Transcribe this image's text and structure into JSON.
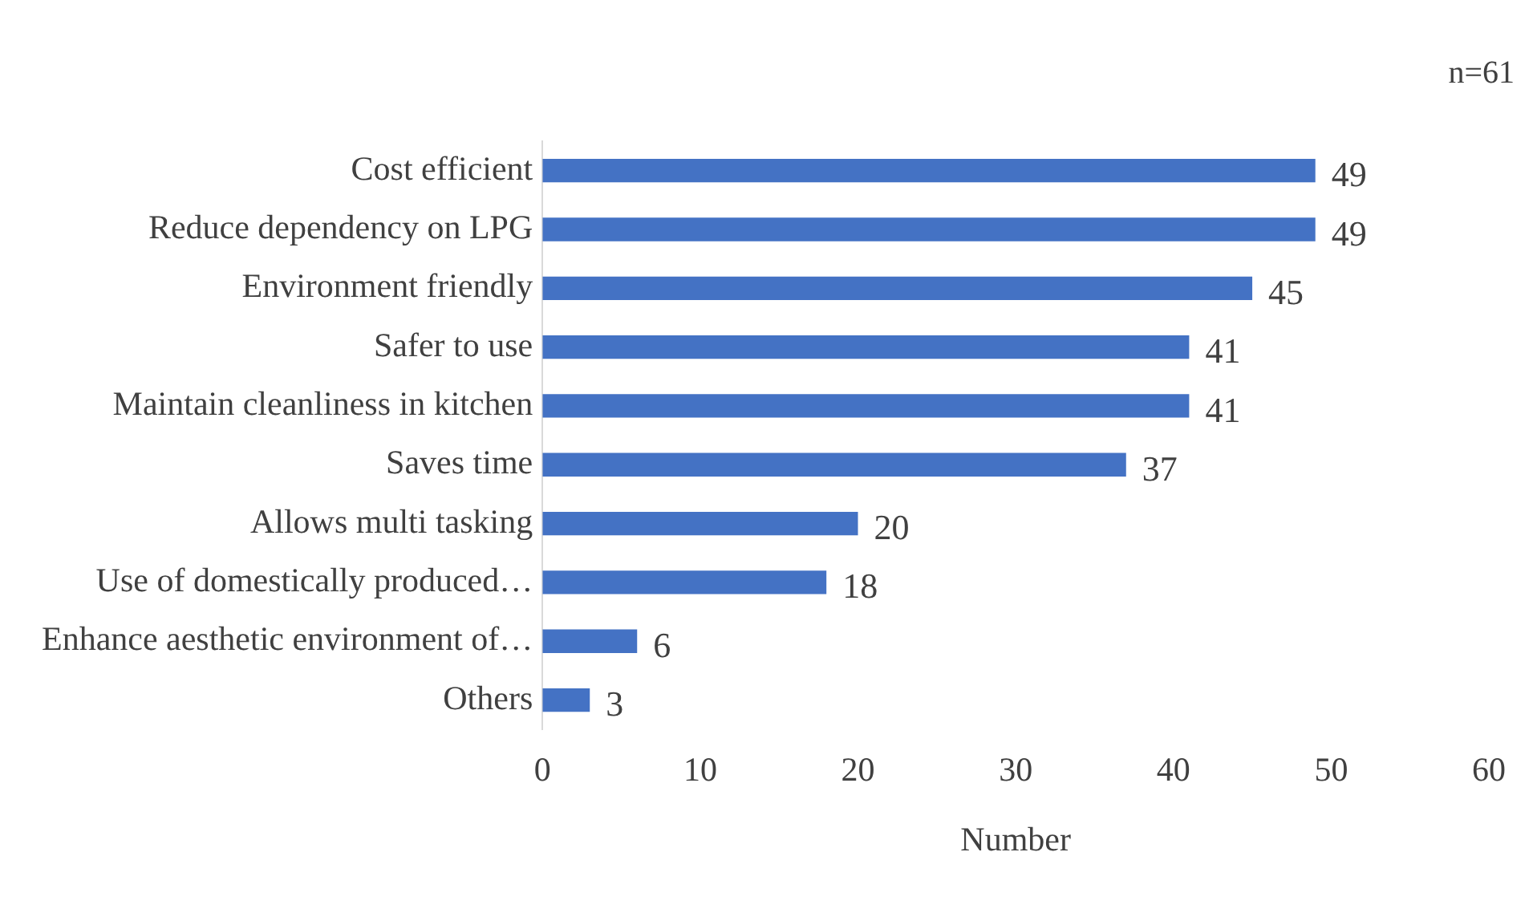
{
  "chart_data": {
    "type": "bar",
    "orientation": "horizontal",
    "xlabel": "Number",
    "annotations": [
      "n=61"
    ],
    "categories": [
      "Cost efficient",
      "Reduce dependency on LPG",
      "Environment friendly",
      "Safer to use",
      "Maintain cleanliness in kitchen",
      "Saves time",
      "Allows multi tasking",
      "Use of domestically produced…",
      "Enhance aesthetic environment of…",
      "Others"
    ],
    "values": [
      49,
      49,
      45,
      41,
      41,
      37,
      20,
      18,
      6,
      3
    ],
    "color": "#4472c4",
    "xlim": [
      0,
      60
    ],
    "xticks": [
      0,
      10,
      20,
      30,
      40,
      50,
      60
    ],
    "data_labels": true,
    "legend": false
  }
}
